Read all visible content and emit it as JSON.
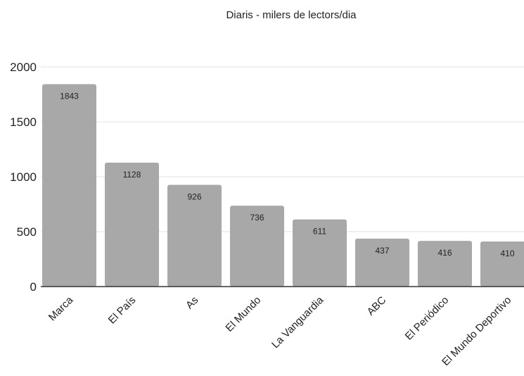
{
  "chart_data": {
    "type": "bar",
    "title": "Diaris - milers de lectors/dia",
    "xlabel": "",
    "ylabel": "",
    "categories": [
      "Marca",
      "El País",
      "As",
      "El Mundo",
      "La Vanguardia",
      "ABC",
      "El Periódico",
      "El Mundo Deportivo"
    ],
    "values": [
      1843,
      1128,
      926,
      736,
      611,
      437,
      416,
      410
    ],
    "data_labels": [
      "1843",
      "1128",
      "926",
      "736",
      "611",
      "437",
      "416",
      "410"
    ],
    "ylim": [
      0,
      2000
    ],
    "yticks": [
      0,
      500,
      1000,
      1500,
      2000
    ],
    "ytick_labels": [
      "0",
      "500",
      "1000",
      "1500",
      "2000"
    ],
    "grid": true,
    "legend": "none",
    "colors": {
      "bar": "#a8a8a8",
      "grid": "#e0e0e0",
      "axis": "#333333",
      "text": "#222222"
    }
  }
}
